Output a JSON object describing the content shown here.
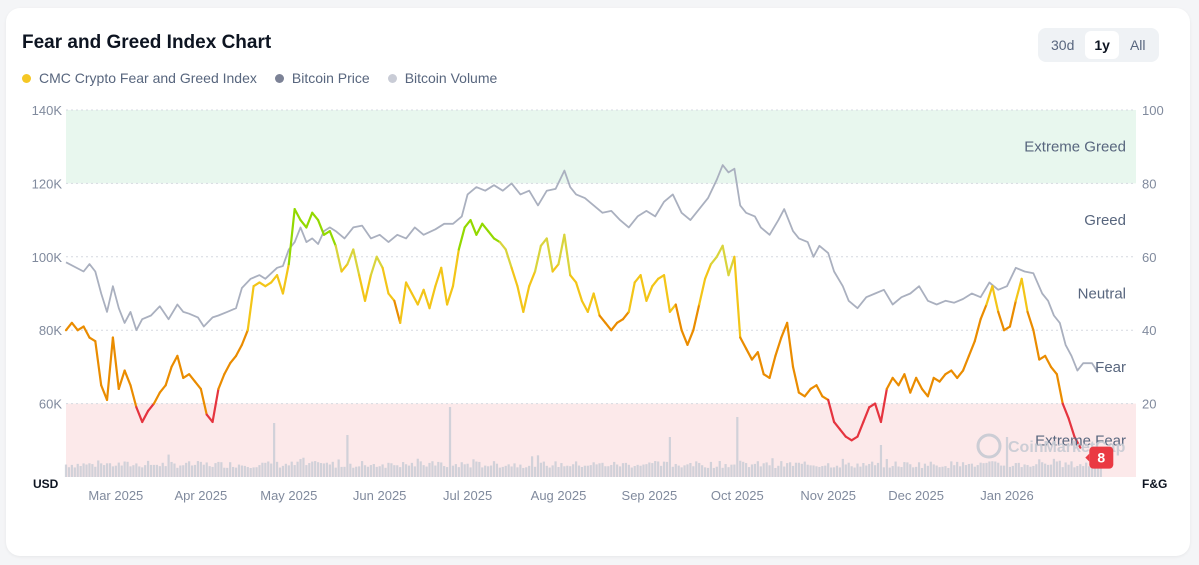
{
  "colors": {
    "index": "#f5c724",
    "price": "#7c8296",
    "volume": "#c9ccd6",
    "extreme_greed_zone": "#e8f7ee",
    "extreme_fear_zone": "#fce9ea",
    "badge": "#ea3943"
  },
  "chart_data": {
    "type": "line",
    "title": "Fear and Greed Index Chart",
    "legend": [
      "CMC Crypto Fear and Greed Index",
      "Bitcoin Price",
      "Bitcoin Volume"
    ],
    "range_options": [
      "30d",
      "1y",
      "All"
    ],
    "selected_range": "1y",
    "left_axis": {
      "label": "USD",
      "ticks": [
        "140K",
        "120K",
        "100K",
        "80K",
        "60K"
      ],
      "values": [
        140000,
        120000,
        100000,
        80000,
        60000
      ],
      "range": [
        40000,
        140000
      ]
    },
    "right_axis": {
      "label": "F&G",
      "ticks": [
        "100",
        "80",
        "60",
        "40",
        "20"
      ],
      "values": [
        100,
        80,
        60,
        40,
        20
      ],
      "range": [
        0,
        100
      ]
    },
    "x_ticks": [
      "Mar 2025",
      "Apr 2025",
      "May 2025",
      "Jun 2025",
      "Jul 2025",
      "Aug 2025",
      "Sep 2025",
      "Oct 2025",
      "Nov 2025",
      "Dec 2025",
      "Jan 2026"
    ],
    "x_tick_days": [
      17,
      46,
      76,
      107,
      137,
      168,
      199,
      229,
      260,
      290,
      321
    ],
    "zones": [
      {
        "label": "Extreme Greed",
        "value": 90
      },
      {
        "label": "Greed",
        "value": 70
      },
      {
        "label": "Neutral",
        "value": 50
      },
      {
        "label": "Fear",
        "value": 30
      },
      {
        "label": "Extreme Fear",
        "value": 10
      }
    ],
    "zone_bands": {
      "extreme_greed": [
        80,
        100
      ],
      "extreme_fear": [
        0,
        20
      ]
    },
    "current_value": "8",
    "total_days": 365,
    "price_series": {
      "name": "Bitcoin Price",
      "points": [
        [
          0,
          98500
        ],
        [
          6,
          96000
        ],
        [
          8,
          98000
        ],
        [
          10,
          96000
        ],
        [
          12,
          90000
        ],
        [
          14,
          85000
        ],
        [
          16,
          92000
        ],
        [
          18,
          86000
        ],
        [
          20,
          82000
        ],
        [
          22,
          85000
        ],
        [
          24,
          80000
        ],
        [
          26,
          83000
        ],
        [
          29,
          84000
        ],
        [
          32,
          86500
        ],
        [
          35,
          83000
        ],
        [
          38,
          87000
        ],
        [
          40,
          85000
        ],
        [
          42,
          84500
        ],
        [
          45,
          83500
        ],
        [
          47,
          81000
        ],
        [
          50,
          83500
        ],
        [
          52,
          84000
        ],
        [
          55,
          85000
        ],
        [
          58,
          86000
        ],
        [
          60,
          91500
        ],
        [
          63,
          94000
        ],
        [
          66,
          95000
        ],
        [
          68,
          94000
        ],
        [
          70,
          95500
        ],
        [
          72,
          97000
        ],
        [
          74,
          97500
        ],
        [
          76,
          102000
        ],
        [
          78,
          104000
        ],
        [
          80,
          108000
        ],
        [
          82,
          104000
        ],
        [
          84,
          105000
        ],
        [
          86,
          103500
        ],
        [
          88,
          107000
        ],
        [
          90,
          108000
        ],
        [
          92,
          107000
        ],
        [
          95,
          105000
        ],
        [
          98,
          108000
        ],
        [
          101,
          108500
        ],
        [
          104,
          105000
        ],
        [
          107,
          106000
        ],
        [
          110,
          104000
        ],
        [
          113,
          106000
        ],
        [
          116,
          105000
        ],
        [
          119,
          108000
        ],
        [
          122,
          106000
        ],
        [
          126,
          107500
        ],
        [
          129,
          109000
        ],
        [
          132,
          109000
        ],
        [
          135,
          111000
        ],
        [
          137,
          117000
        ],
        [
          140,
          119000
        ],
        [
          143,
          118000
        ],
        [
          146,
          119500
        ],
        [
          149,
          118000
        ],
        [
          152,
          120000
        ],
        [
          155,
          117000
        ],
        [
          158,
          118000
        ],
        [
          161,
          114000
        ],
        [
          164,
          118000
        ],
        [
          167,
          118500
        ],
        [
          170,
          123500
        ],
        [
          172,
          119000
        ],
        [
          174,
          117000
        ],
        [
          177,
          116000
        ],
        [
          180,
          114000
        ],
        [
          183,
          112000
        ],
        [
          186,
          112500
        ],
        [
          189,
          110000
        ],
        [
          192,
          108000
        ],
        [
          195,
          111000
        ],
        [
          198,
          112500
        ],
        [
          201,
          111000
        ],
        [
          204,
          115000
        ],
        [
          207,
          117000
        ],
        [
          210,
          112000
        ],
        [
          213,
          110000
        ],
        [
          216,
          113000
        ],
        [
          219,
          116000
        ],
        [
          222,
          121000
        ],
        [
          224,
          125000
        ],
        [
          226,
          123000
        ],
        [
          228,
          124000
        ],
        [
          230,
          114000
        ],
        [
          232,
          112000
        ],
        [
          235,
          111000
        ],
        [
          237,
          108000
        ],
        [
          240,
          106000
        ],
        [
          243,
          110000
        ],
        [
          245,
          113000
        ],
        [
          248,
          107000
        ],
        [
          250,
          105000
        ],
        [
          253,
          104000
        ],
        [
          255,
          100000
        ],
        [
          257,
          103000
        ],
        [
          260,
          101000
        ],
        [
          262,
          96000
        ],
        [
          265,
          92000
        ],
        [
          267,
          88000
        ],
        [
          270,
          86000
        ],
        [
          273,
          89000
        ],
        [
          276,
          90000
        ],
        [
          279,
          91000
        ],
        [
          282,
          87000
        ],
        [
          285,
          89000
        ],
        [
          288,
          90000
        ],
        [
          291,
          92000
        ],
        [
          294,
          88000
        ],
        [
          297,
          87000
        ],
        [
          300,
          88000
        ],
        [
          303,
          87500
        ],
        [
          306,
          88500
        ],
        [
          309,
          90000
        ],
        [
          312,
          89000
        ],
        [
          315,
          93000
        ],
        [
          318,
          91000
        ],
        [
          321,
          92000
        ],
        [
          324,
          97000
        ],
        [
          327,
          96000
        ],
        [
          330,
          95500
        ],
        [
          333,
          90000
        ],
        [
          335,
          88000
        ],
        [
          337,
          84000
        ],
        [
          339,
          82000
        ],
        [
          341,
          76000
        ],
        [
          343,
          73000
        ],
        [
          345,
          69000
        ],
        [
          347,
          71000
        ],
        [
          350,
          71000
        ],
        [
          352,
          68500
        ]
      ]
    },
    "index_series": {
      "name": "CMC Crypto Fear and Greed Index",
      "points": [
        [
          0,
          40
        ],
        [
          2,
          42
        ],
        [
          4,
          40
        ],
        [
          6,
          41
        ],
        [
          8,
          38
        ],
        [
          10,
          37
        ],
        [
          12,
          25
        ],
        [
          14,
          21
        ],
        [
          16,
          38
        ],
        [
          18,
          24
        ],
        [
          20,
          29
        ],
        [
          22,
          25
        ],
        [
          24,
          19
        ],
        [
          26,
          15
        ],
        [
          28,
          18
        ],
        [
          30,
          20
        ],
        [
          32,
          23
        ],
        [
          34,
          25
        ],
        [
          36,
          30
        ],
        [
          38,
          33
        ],
        [
          40,
          27
        ],
        [
          42,
          28
        ],
        [
          44,
          26
        ],
        [
          46,
          24
        ],
        [
          48,
          17
        ],
        [
          50,
          15
        ],
        [
          52,
          24
        ],
        [
          54,
          28
        ],
        [
          56,
          31
        ],
        [
          58,
          33
        ],
        [
          60,
          36
        ],
        [
          62,
          40
        ],
        [
          64,
          52
        ],
        [
          66,
          53
        ],
        [
          68,
          52
        ],
        [
          70,
          53
        ],
        [
          72,
          55
        ],
        [
          74,
          50
        ],
        [
          76,
          58
        ],
        [
          78,
          73
        ],
        [
          80,
          70
        ],
        [
          82,
          68
        ],
        [
          84,
          72
        ],
        [
          86,
          70
        ],
        [
          88,
          66
        ],
        [
          90,
          67
        ],
        [
          92,
          63
        ],
        [
          94,
          56
        ],
        [
          96,
          58
        ],
        [
          98,
          62
        ],
        [
          100,
          55
        ],
        [
          102,
          48
        ],
        [
          104,
          55
        ],
        [
          106,
          60
        ],
        [
          108,
          57
        ],
        [
          110,
          50
        ],
        [
          112,
          48
        ],
        [
          114,
          42
        ],
        [
          116,
          53
        ],
        [
          118,
          50
        ],
        [
          120,
          47
        ],
        [
          122,
          51
        ],
        [
          124,
          46
        ],
        [
          126,
          52
        ],
        [
          128,
          57
        ],
        [
          130,
          47
        ],
        [
          132,
          52
        ],
        [
          134,
          62
        ],
        [
          136,
          68
        ],
        [
          138,
          70
        ],
        [
          140,
          66
        ],
        [
          142,
          69
        ],
        [
          144,
          67
        ],
        [
          146,
          65
        ],
        [
          148,
          64
        ],
        [
          150,
          62
        ],
        [
          152,
          57
        ],
        [
          154,
          52
        ],
        [
          156,
          45
        ],
        [
          158,
          52
        ],
        [
          160,
          56
        ],
        [
          162,
          63
        ],
        [
          164,
          65
        ],
        [
          166,
          56
        ],
        [
          168,
          58
        ],
        [
          170,
          66
        ],
        [
          172,
          55
        ],
        [
          174,
          53
        ],
        [
          176,
          48
        ],
        [
          178,
          45
        ],
        [
          180,
          50
        ],
        [
          182,
          44
        ],
        [
          184,
          42
        ],
        [
          186,
          40
        ],
        [
          188,
          42
        ],
        [
          190,
          43
        ],
        [
          192,
          45
        ],
        [
          194,
          53
        ],
        [
          196,
          55
        ],
        [
          198,
          48
        ],
        [
          200,
          52
        ],
        [
          202,
          54
        ],
        [
          204,
          55
        ],
        [
          206,
          45
        ],
        [
          208,
          47
        ],
        [
          210,
          40
        ],
        [
          212,
          36
        ],
        [
          214,
          40
        ],
        [
          216,
          47
        ],
        [
          218,
          54
        ],
        [
          220,
          58
        ],
        [
          222,
          60
        ],
        [
          224,
          63
        ],
        [
          226,
          55
        ],
        [
          228,
          60
        ],
        [
          230,
          38
        ],
        [
          232,
          35
        ],
        [
          234,
          32
        ],
        [
          236,
          34
        ],
        [
          238,
          28
        ],
        [
          240,
          27
        ],
        [
          242,
          33
        ],
        [
          244,
          38
        ],
        [
          246,
          42
        ],
        [
          248,
          30
        ],
        [
          250,
          23
        ],
        [
          252,
          22
        ],
        [
          254,
          24
        ],
        [
          256,
          25
        ],
        [
          258,
          22
        ],
        [
          260,
          21
        ],
        [
          262,
          15
        ],
        [
          264,
          13
        ],
        [
          266,
          11
        ],
        [
          268,
          10
        ],
        [
          270,
          11
        ],
        [
          272,
          15
        ],
        [
          274,
          19
        ],
        [
          276,
          20
        ],
        [
          278,
          15
        ],
        [
          280,
          24
        ],
        [
          282,
          27
        ],
        [
          284,
          25
        ],
        [
          286,
          28
        ],
        [
          288,
          23
        ],
        [
          290,
          27
        ],
        [
          292,
          24
        ],
        [
          294,
          22
        ],
        [
          296,
          27
        ],
        [
          298,
          26
        ],
        [
          300,
          28
        ],
        [
          302,
          29
        ],
        [
          304,
          27
        ],
        [
          306,
          29
        ],
        [
          308,
          33
        ],
        [
          310,
          37
        ],
        [
          312,
          43
        ],
        [
          314,
          47
        ],
        [
          316,
          52
        ],
        [
          318,
          45
        ],
        [
          320,
          40
        ],
        [
          322,
          41
        ],
        [
          324,
          48
        ],
        [
          326,
          54
        ],
        [
          328,
          45
        ],
        [
          330,
          40
        ],
        [
          332,
          32
        ],
        [
          334,
          33
        ],
        [
          336,
          30
        ],
        [
          338,
          28
        ],
        [
          340,
          20
        ],
        [
          342,
          16
        ],
        [
          344,
          11
        ],
        [
          346,
          8
        ]
      ]
    },
    "volume_series": {
      "name": "Bitcoin Volume",
      "seed": 7,
      "base": [
        0.45,
        0.8
      ],
      "spikes": [
        [
          71,
          2.7
        ],
        [
          96,
          2.1
        ],
        [
          131,
          3.5
        ],
        [
          206,
          2.0
        ],
        [
          229,
          3.0
        ],
        [
          278,
          1.6
        ],
        [
          321,
          2.0
        ]
      ]
    }
  },
  "watermark": "CoinMarketCap"
}
